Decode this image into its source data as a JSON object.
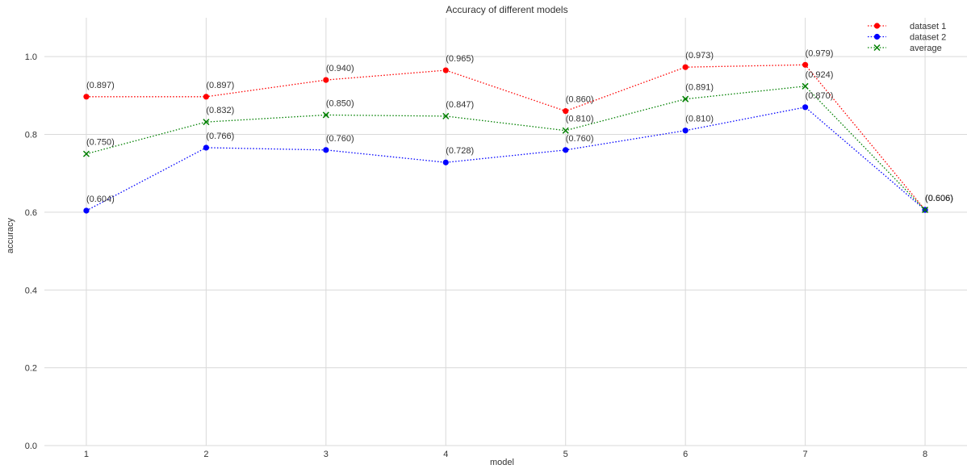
{
  "chart_data": {
    "type": "line",
    "title": "Accuracy of different models",
    "xlabel": "model",
    "ylabel": "accuracy",
    "x": [
      1,
      2,
      3,
      4,
      5,
      6,
      7,
      8
    ],
    "xticks": [
      "1",
      "2",
      "3",
      "4",
      "5",
      "6",
      "7",
      "8"
    ],
    "yticks": [
      "0.0",
      "0.2",
      "0.4",
      "0.6",
      "0.8",
      "1.0"
    ],
    "ylim": [
      0,
      1.1
    ],
    "grid": true,
    "legend_position": "top-right",
    "series": [
      {
        "name": "dataset 1",
        "color": "#ff0000",
        "marker": "circle",
        "values": [
          0.897,
          0.897,
          0.94,
          0.965,
          0.86,
          0.973,
          0.979,
          0.606
        ],
        "labels": [
          "(0.897)",
          "(0.897)",
          "(0.940)",
          "(0.965)",
          "(0.860)",
          "(0.973)",
          "(0.979)",
          "(0.606)"
        ]
      },
      {
        "name": "dataset 2",
        "color": "#0000ff",
        "marker": "circle",
        "values": [
          0.604,
          0.766,
          0.76,
          0.728,
          0.76,
          0.81,
          0.87,
          0.606
        ],
        "labels": [
          "(0.604)",
          "(0.766)",
          "(0.760)",
          "(0.728)",
          "(0.760)",
          "(0.810)",
          "(0.870)",
          "(0.606)"
        ]
      },
      {
        "name": "average",
        "color": "#008000",
        "marker": "x",
        "values": [
          0.75,
          0.832,
          0.85,
          0.847,
          0.81,
          0.891,
          0.924,
          0.606
        ],
        "labels": [
          "(0.750)",
          "(0.832)",
          "(0.850)",
          "(0.847)",
          "(0.810)",
          "(0.891)",
          "(0.924)",
          "(0.606)"
        ]
      }
    ]
  }
}
